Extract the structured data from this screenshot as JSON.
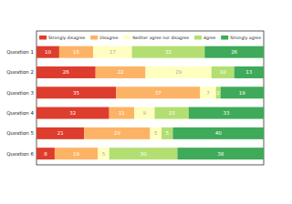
{
  "chart_data": {
    "type": "bar",
    "orientation": "horizontal",
    "stacked": true,
    "data_labels": true,
    "tick_labels": "y",
    "legend": "top",
    "categories": [
      "Question 1",
      "Question 2",
      "Question 3",
      "Question 4",
      "Question 5",
      "Question 6"
    ],
    "xlim": [
      0,
      100
    ],
    "series": [
      {
        "name": "Strongly disagree",
        "color": "#dd3d2d",
        "values": [
          10,
          26,
          35,
          32,
          21,
          8
        ]
      },
      {
        "name": "Disagree",
        "color": "#fdb365",
        "values": [
          15,
          22,
          37,
          11,
          29,
          19
        ]
      },
      {
        "name": "Neither agree nor disagree",
        "color": "#feffbe",
        "values": [
          17,
          29,
          7,
          9,
          5,
          5
        ]
      },
      {
        "name": "Agree",
        "color": "#b3df72",
        "values": [
          32,
          10,
          2,
          15,
          5,
          30
        ]
      },
      {
        "name": "Strongly agree",
        "color": "#3faa59",
        "values": [
          26,
          13,
          19,
          33,
          40,
          38
        ]
      }
    ]
  }
}
